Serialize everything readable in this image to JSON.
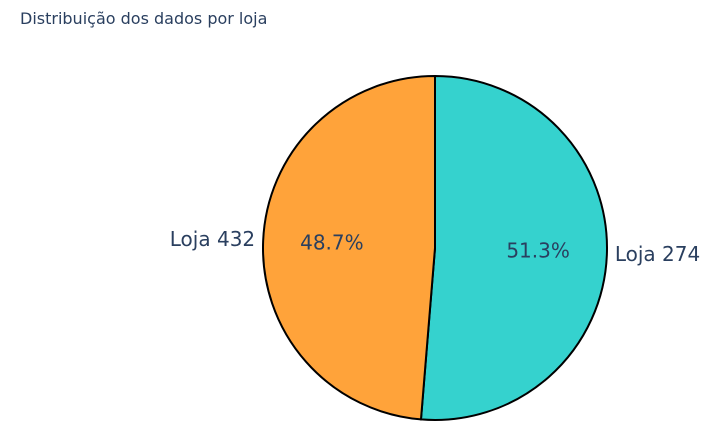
{
  "chart_data": {
    "type": "pie",
    "title": "Distribuição dos dados por loja",
    "slices": [
      {
        "name": "Loja 274",
        "value": 51.3,
        "percent_label": "51.3%",
        "color": "#35d2ce"
      },
      {
        "name": "Loja 432",
        "value": 48.7,
        "percent_label": "48.7%",
        "color": "#ffa33a"
      }
    ],
    "start_angle_deg": 0,
    "direction": "clockwise",
    "outline_color": "#000000"
  }
}
